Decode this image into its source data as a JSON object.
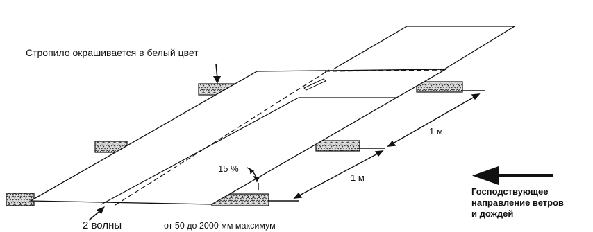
{
  "labels": {
    "rafter_note": "Стропило окрашивается в белый цвет",
    "waves": "2 волны",
    "overlap": "от 50 до 2000 мм максимум",
    "slope": "15 %",
    "spacing_upper": "1 м",
    "spacing_lower": "1 м",
    "wind_line1": "Господствующее",
    "wind_line2": "направление ветров",
    "wind_line3": "и дождей"
  },
  "colors": {
    "line": "#111111",
    "sheet": "#ffffff",
    "rafter_fill": "#d8d8d8"
  },
  "icons": [
    "wind-direction-arrow-icon",
    "pointer-arrow-icon",
    "dimension-arrow-icon"
  ]
}
